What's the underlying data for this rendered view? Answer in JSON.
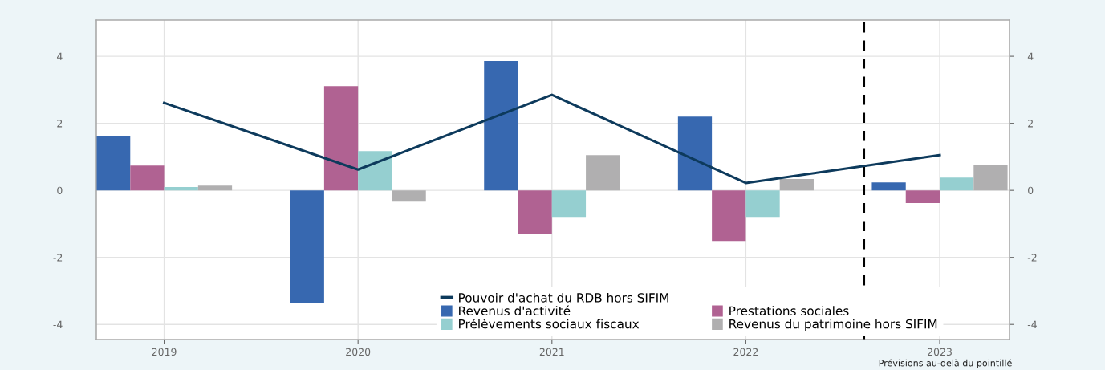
{
  "chart_data": {
    "type": "bar",
    "x": [
      2019,
      2020,
      2021,
      2022,
      2023
    ],
    "xlim": [
      2018.65,
      2023.36
    ],
    "xticks": [
      2019,
      2020,
      2021,
      2022,
      2023
    ],
    "ylim": [
      -4.45,
      5.08
    ],
    "yticks": [
      -4,
      -2,
      0,
      2,
      4
    ],
    "y2lim": [
      -4.45,
      5.08
    ],
    "y2ticks": [
      -4,
      -2,
      0,
      2,
      4
    ],
    "grid": true,
    "legend": "bottom",
    "series": [
      {
        "name": "Pouvoir d'achat du RDB hors SIFIM",
        "type": "line",
        "color": "#0d3a5c",
        "values": [
          2.61,
          0.62,
          2.85,
          0.22,
          1.05
        ],
        "marker": "none",
        "line_style": "solid"
      },
      {
        "name": "Revenus d'activité",
        "color": "#3768b0",
        "values": [
          1.63,
          -3.35,
          3.86,
          2.2,
          0.24
        ]
      },
      {
        "name": "Prestations sociales",
        "color": "#b06292",
        "values": [
          0.74,
          3.11,
          -1.29,
          -1.51,
          -0.38
        ]
      },
      {
        "name": "Prélèvements sociaux fiscaux",
        "color": "#95cfd0",
        "values": [
          0.1,
          1.17,
          -0.79,
          -0.79,
          0.38
        ]
      },
      {
        "name": "Revenus du patrimoine hors SIFIM",
        "color": "#b0afb0",
        "values": [
          0.14,
          -0.34,
          1.05,
          0.34,
          0.77
        ]
      }
    ],
    "ref_lines": [
      {
        "axis": "x",
        "value": 2022.61,
        "color": "#000000",
        "line_style": "dashed"
      }
    ],
    "annotations": [
      "Prévisions au-delà du pointillé"
    ]
  }
}
